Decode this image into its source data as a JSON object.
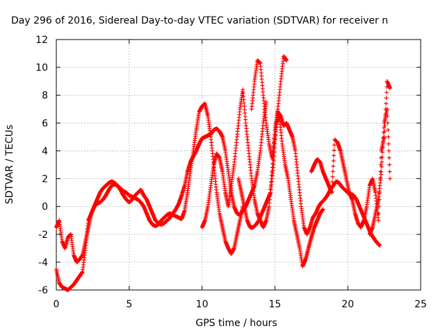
{
  "chart_data": {
    "type": "scatter",
    "title": "Day 296 of 2016, Sidereal Day-to-day VTEC variation (SDTVAR) for receiver n",
    "xlabel": "GPS time / hours",
    "ylabel": "SDTVAR / TECUs",
    "xlim": [
      0,
      25
    ],
    "ylim": [
      -6,
      12
    ],
    "xticks": [
      0,
      5,
      10,
      15,
      20,
      25
    ],
    "yticks": [
      -6,
      -4,
      -2,
      0,
      2,
      4,
      6,
      8,
      10,
      12
    ],
    "grid": true,
    "marker": "+",
    "color": "#ff0000",
    "series": [
      {
        "x": [
          0.0,
          0.2,
          0.4,
          0.6,
          0.8,
          1.0,
          1.2,
          1.4,
          1.6,
          1.8,
          2.0,
          2.2,
          2.4,
          2.6,
          2.8,
          3.0,
          3.2,
          3.4,
          3.6,
          3.8,
          4.0,
          4.2,
          4.4,
          4.6,
          4.8,
          5.0,
          5.2,
          5.4,
          5.6,
          5.8,
          6.0,
          6.2,
          6.4,
          6.6,
          6.8,
          7.0,
          7.2,
          7.4,
          7.6,
          7.8,
          8.0,
          8.2,
          8.4,
          8.6,
          8.8,
          9.0,
          9.2,
          9.4,
          9.6,
          9.8,
          10.0,
          10.2,
          10.4,
          10.6,
          10.8,
          11.0,
          11.2,
          11.4,
          11.6,
          11.8,
          12.0,
          12.2,
          12.4,
          12.6,
          12.8
        ],
        "y": [
          -4.5,
          -5.5,
          -5.8,
          -5.9,
          -6.0,
          -5.8,
          -5.6,
          -5.3,
          -5.0,
          -4.7,
          -3.0,
          -1.0,
          -0.5,
          0.0,
          0.5,
          1.0,
          1.3,
          1.5,
          1.7,
          1.8,
          1.7,
          1.5,
          1.3,
          1.1,
          1.0,
          0.8,
          0.7,
          0.6,
          0.5,
          0.3,
          0.0,
          -0.5,
          -1.0,
          -1.3,
          -1.4,
          -1.3,
          -1.0,
          -0.8,
          -0.6,
          -0.5,
          -0.6,
          -0.7,
          -0.8,
          -0.9,
          -0.3,
          1.0,
          2.5,
          4.0,
          5.5,
          6.8,
          7.2,
          7.4,
          6.5,
          5.0,
          3.0,
          1.0,
          -0.5,
          -1.5,
          -2.5,
          -3.0,
          -3.4,
          -3.0,
          -2.0,
          -1.0,
          0.0
        ]
      },
      {
        "x": [
          0.0,
          0.2,
          0.4,
          0.6,
          0.8,
          1.0,
          1.2,
          1.4,
          1.6,
          1.8,
          2.0,
          2.2,
          2.4,
          2.6,
          2.8,
          3.0,
          3.2,
          3.4,
          3.6,
          3.8,
          4.0,
          4.2,
          4.4,
          4.6,
          4.8,
          5.0,
          5.2,
          5.4,
          5.6,
          5.8,
          6.0,
          6.2,
          6.4,
          6.6,
          6.8,
          7.0,
          7.2,
          7.4,
          7.6,
          7.8,
          8.0,
          8.2,
          8.4,
          8.6,
          8.8,
          9.0,
          9.2,
          9.4,
          9.6,
          9.8,
          10.0,
          10.2,
          10.4,
          10.6,
          10.8,
          11.0,
          11.2,
          11.4,
          11.6,
          11.8,
          12.0,
          12.2,
          12.4,
          12.6,
          12.8,
          13.0,
          13.2,
          13.4,
          13.6,
          13.8,
          14.0,
          14.2,
          14.4
        ],
        "y": [
          -1.5,
          -1.0,
          -2.5,
          -3.0,
          -2.2,
          -2.0,
          -3.5,
          -4.0,
          -3.8,
          -3.5,
          -2.5,
          -1.5,
          -0.5,
          0.0,
          0.2,
          0.3,
          0.5,
          0.8,
          1.2,
          1.5,
          1.6,
          1.5,
          1.2,
          0.8,
          0.5,
          0.3,
          0.5,
          0.8,
          1.0,
          1.2,
          0.8,
          0.5,
          0.0,
          -0.5,
          -1.0,
          -1.2,
          -1.3,
          -1.2,
          -1.0,
          -0.8,
          -0.5,
          -0.2,
          0.2,
          0.8,
          1.5,
          2.5,
          3.2,
          3.6,
          4.0,
          4.5,
          4.9,
          5.0,
          5.1,
          5.2,
          5.5,
          5.6,
          5.4,
          5.0,
          4.0,
          2.5,
          1.0,
          0.0,
          -0.5,
          -0.6,
          -0.3,
          0.0,
          0.5,
          1.0,
          1.5,
          2.5,
          4.0,
          6.0,
          7.5
        ]
      },
      {
        "x": [
          10.0,
          10.2,
          10.4,
          10.6,
          10.8,
          11.0,
          11.2,
          11.4,
          11.6,
          11.8,
          12.0,
          12.2,
          12.4,
          12.6,
          12.8,
          13.0,
          13.2,
          13.4,
          13.6,
          13.8,
          14.0,
          14.2,
          14.4,
          14.6,
          14.8,
          15.0,
          15.2,
          15.4,
          15.6,
          15.8
        ],
        "y": [
          -1.5,
          -1.0,
          0.0,
          1.5,
          3.0,
          3.8,
          3.5,
          2.5,
          1.0,
          0.0,
          1.5,
          3.0,
          5.0,
          7.0,
          8.4,
          6.0,
          4.0,
          2.0,
          0.5,
          -0.5,
          -1.0,
          -1.5,
          -1.0,
          0.0,
          2.5,
          5.5,
          7.0,
          9.0,
          10.8,
          10.5
        ]
      },
      {
        "x": [
          13.4,
          13.6,
          13.8,
          14.0,
          14.2,
          14.4,
          14.6,
          14.8,
          15.0,
          15.2,
          15.4,
          15.6,
          15.8,
          16.0,
          16.2,
          16.4,
          16.6,
          16.8,
          17.0,
          17.2,
          17.4,
          17.6,
          17.8,
          18.0,
          18.2,
          18.4,
          18.6,
          18.8,
          19.0,
          19.2,
          19.4,
          19.6,
          19.8,
          20.0,
          20.2,
          20.4,
          20.6,
          20.8,
          21.0,
          21.2,
          21.4,
          21.6,
          21.8,
          22.0,
          22.2
        ],
        "y": [
          7.0,
          9.0,
          10.5,
          10.3,
          8.0,
          6.0,
          4.5,
          3.5,
          5.0,
          6.8,
          6.5,
          5.8,
          6.0,
          5.5,
          5.0,
          4.0,
          2.0,
          0.0,
          -1.5,
          -2.0,
          -1.5,
          -0.8,
          -0.5,
          0.0,
          0.3,
          0.5,
          0.8,
          1.2,
          1.5,
          1.8,
          1.7,
          1.4,
          1.2,
          1.0,
          0.9,
          0.8,
          0.5,
          0.0,
          -0.5,
          -1.0,
          -1.5,
          -2.0,
          -2.3,
          -2.6,
          -2.8
        ]
      },
      {
        "x": [
          12.5,
          12.7,
          12.9,
          13.1,
          13.3,
          13.5,
          13.7,
          13.9,
          14.1,
          14.3,
          14.5,
          14.7,
          14.9,
          15.1,
          15.3,
          15.5,
          15.7,
          15.9,
          16.1,
          16.3,
          16.5,
          16.7,
          16.9,
          17.1,
          17.3,
          17.5,
          17.7,
          17.9,
          18.1,
          18.3
        ],
        "y": [
          2.0,
          1.0,
          0.0,
          -1.0,
          -1.5,
          -1.5,
          -1.3,
          -1.0,
          -0.5,
          0.0,
          0.5,
          1.0,
          3.0,
          6.0,
          6.5,
          4.5,
          3.0,
          2.0,
          0.5,
          -1.0,
          -2.0,
          -3.0,
          -4.3,
          -3.8,
          -3.0,
          -2.2,
          -1.5,
          -1.0,
          -0.5,
          -0.2
        ]
      },
      {
        "x": [
          17.5,
          17.7,
          17.9,
          18.1,
          18.3,
          18.5,
          18.7,
          18.9,
          19.1,
          19.3,
          19.5,
          19.7,
          19.9,
          20.1,
          20.3,
          20.5,
          20.7,
          20.9,
          21.1,
          21.3,
          21.5,
          21.7,
          21.9,
          22.1,
          22.3,
          22.5,
          22.7,
          22.9
        ],
        "y": [
          2.5,
          3.0,
          3.4,
          3.2,
          2.5,
          2.0,
          1.5,
          1.0,
          4.8,
          4.6,
          4.0,
          3.0,
          2.0,
          1.0,
          0.5,
          -0.5,
          -1.2,
          -1.5,
          -1.0,
          0.0,
          1.5,
          2.0,
          1.0,
          -1.0,
          4.0,
          5.0,
          9.0,
          8.5
        ]
      },
      {
        "x": [
          21.5,
          21.7,
          21.9,
          22.1,
          22.3,
          22.5,
          22.7,
          22.9
        ],
        "y": [
          -2.0,
          -1.5,
          -0.5,
          0.5,
          2.5,
          6.0,
          7.0,
          2.0
        ]
      }
    ]
  }
}
